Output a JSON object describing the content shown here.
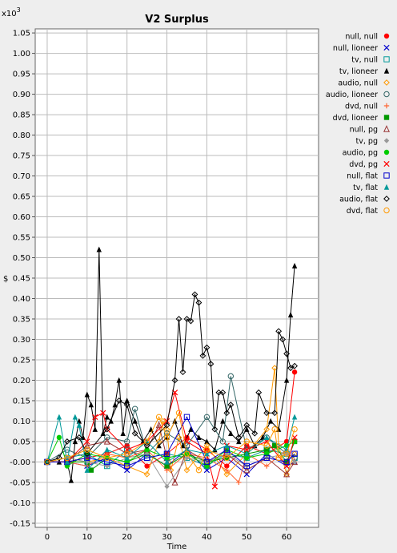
{
  "chart_data": {
    "type": "scatter",
    "title": "V2 Surplus",
    "xlabel": "Time",
    "ylabel": "$",
    "y_multiplier": "x10",
    "y_multiplier_exp": "3",
    "xlim": [
      -3,
      68
    ],
    "ylim": [
      -0.16,
      1.06
    ],
    "grid": true,
    "legend_position": "right",
    "x_ticks": [
      0,
      10,
      20,
      30,
      40,
      50,
      60
    ],
    "x_tick_labels": [
      "0",
      "10",
      "20",
      "30",
      "40",
      "50",
      "60"
    ],
    "y_ticks": [
      -0.15,
      -0.1,
      -0.05,
      0.0,
      0.05,
      0.1,
      0.15,
      0.2,
      0.25,
      0.3,
      0.35,
      0.4,
      0.45,
      0.5,
      0.55,
      0.6,
      0.65,
      0.7,
      0.75,
      0.8,
      0.85,
      0.9,
      0.95,
      1.0,
      1.05
    ],
    "y_tick_labels": [
      "-0.15",
      "-0.10",
      "-0.05",
      "-0.00",
      "0.05",
      "0.10",
      "0.15",
      "0.20",
      "0.25",
      "0.30",
      "0.35",
      "0.40",
      "0.45",
      "0.50",
      "0.55",
      "0.60",
      "0.65",
      "0.70",
      "0.75",
      "0.80",
      "0.85",
      "0.90",
      "0.95",
      "1.00",
      "1.05"
    ],
    "series": [
      {
        "name": "null, null",
        "color": "#ff0000",
        "marker": "circle",
        "x": [
          0,
          5,
          10,
          15,
          20,
          25,
          30,
          35,
          40,
          45,
          50,
          55,
          60,
          62
        ],
        "y": [
          0,
          0,
          0.01,
          0.02,
          0.04,
          -0.01,
          0.02,
          0.06,
          0.03,
          -0.01,
          0.04,
          0.02,
          0.05,
          0.22
        ]
      },
      {
        "name": "null, lioneer",
        "color": "#0000cc",
        "marker": "x",
        "x": [
          0,
          5,
          10,
          15,
          20,
          25,
          30,
          35,
          40,
          45,
          50,
          55,
          60,
          62
        ],
        "y": [
          0,
          0,
          -0.01,
          0.01,
          -0.02,
          0.02,
          -0.01,
          0.03,
          -0.02,
          0.01,
          -0.03,
          0.02,
          -0.01,
          0.0
        ]
      },
      {
        "name": "tv, null",
        "color": "#009999",
        "marker": "square",
        "x": [
          0,
          5,
          10,
          15,
          20,
          25,
          30,
          35,
          40,
          45,
          50,
          55,
          60,
          62
        ],
        "y": [
          0,
          0.01,
          0.02,
          -0.01,
          0.03,
          0.01,
          0.02,
          0.01,
          -0.01,
          0.02,
          0.01,
          0.03,
          0.02,
          0.01
        ]
      },
      {
        "name": "tv, lioneer",
        "color": "#000000",
        "marker": "triangle",
        "x": [
          0,
          3,
          5,
          6,
          7,
          8,
          9,
          10,
          11,
          12,
          13,
          14,
          15,
          16,
          17,
          18,
          19,
          20,
          22,
          24,
          26,
          28,
          30,
          32,
          34,
          36,
          38,
          40,
          42,
          44,
          46,
          48,
          50,
          52,
          54,
          56,
          58,
          60,
          61,
          62
        ],
        "y": [
          0,
          0,
          0,
          -0.045,
          0.05,
          0.1,
          0.06,
          0.165,
          0.14,
          0.08,
          0.52,
          0.07,
          0.11,
          0.1,
          0.14,
          0.2,
          0.07,
          0.15,
          0.1,
          0.05,
          0.08,
          0.04,
          0.06,
          0.1,
          0.04,
          0.08,
          0.06,
          0.05,
          0.03,
          0.1,
          0.07,
          0.05,
          0.08,
          0.04,
          0.06,
          0.1,
          0.08,
          0.2,
          0.36,
          0.48
        ]
      },
      {
        "name": "audio, null",
        "color": "#ff9900",
        "marker": "diamond",
        "x": [
          0,
          5,
          10,
          15,
          20,
          25,
          28,
          29,
          30,
          31,
          33,
          35,
          40,
          45,
          50,
          55,
          57,
          58,
          60,
          62
        ],
        "y": [
          0,
          0,
          0,
          0.01,
          -0.01,
          -0.03,
          0.05,
          0.1,
          0.08,
          -0.02,
          0.06,
          -0.02,
          0.04,
          -0.03,
          0.02,
          0.08,
          0.23,
          0.04,
          -0.03,
          0.02
        ]
      },
      {
        "name": "audio, lioneer",
        "color": "#336666",
        "marker": "circleopen",
        "x": [
          0,
          5,
          10,
          15,
          20,
          22,
          25,
          30,
          35,
          40,
          44,
          46,
          50,
          55,
          60,
          62
        ],
        "y": [
          0,
          0.03,
          0.01,
          0.06,
          0.05,
          0.13,
          0.02,
          0.07,
          0.04,
          0.11,
          0.05,
          0.21,
          0.03,
          0.06,
          0.02,
          0.01
        ]
      },
      {
        "name": "dvd, null",
        "color": "#ff6633",
        "marker": "plus",
        "x": [
          0,
          5,
          10,
          15,
          20,
          25,
          30,
          35,
          40,
          45,
          48,
          50,
          55,
          60,
          62
        ],
        "y": [
          0,
          0,
          -0.01,
          0.02,
          0.01,
          0.03,
          -0.02,
          0.02,
          0.01,
          -0.02,
          -0.05,
          0.02,
          -0.01,
          0.03,
          0.0
        ]
      },
      {
        "name": "dvd, lioneer",
        "color": "#009900",
        "marker": "squarefill",
        "x": [
          0,
          5,
          10,
          11,
          15,
          20,
          25,
          30,
          35,
          40,
          45,
          50,
          55,
          57,
          60,
          62
        ],
        "y": [
          0,
          0,
          0.0,
          -0.02,
          0.01,
          0.0,
          0.02,
          -0.01,
          0.02,
          0.0,
          0.01,
          0.02,
          0.03,
          0.04,
          0.0,
          0.05
        ]
      },
      {
        "name": "null, pg",
        "color": "#993333",
        "marker": "triangleopen",
        "x": [
          0,
          5,
          10,
          15,
          20,
          25,
          28,
          30,
          32,
          35,
          40,
          45,
          50,
          55,
          60,
          62
        ],
        "y": [
          0,
          0,
          0.04,
          0.05,
          0.02,
          0.03,
          0.09,
          0.01,
          -0.05,
          0.03,
          0.0,
          0.02,
          -0.02,
          0.01,
          -0.03,
          0.0
        ]
      },
      {
        "name": "tv, pg",
        "color": "#999999",
        "marker": "diamondfill",
        "x": [
          0,
          5,
          10,
          15,
          20,
          25,
          30,
          35,
          40,
          45,
          50,
          55,
          60,
          62
        ],
        "y": [
          0,
          0.01,
          0.0,
          -0.01,
          0.01,
          0.02,
          -0.06,
          0.01,
          0.0,
          0.02,
          -0.01,
          0.01,
          0.02,
          0.0
        ]
      },
      {
        "name": "audio, pg",
        "color": "#00cc00",
        "marker": "circlefill",
        "x": [
          0,
          3,
          5,
          10,
          15,
          20,
          25,
          30,
          35,
          40,
          45,
          50,
          55,
          60,
          62
        ],
        "y": [
          0,
          0.06,
          -0.01,
          0.02,
          0.01,
          0.0,
          0.03,
          0.01,
          0.02,
          -0.01,
          0.03,
          0.01,
          0.02,
          0.04,
          0.05
        ]
      },
      {
        "name": "dvd, pg",
        "color": "#ff0000",
        "marker": "x",
        "x": [
          0,
          5,
          10,
          12,
          14,
          15,
          20,
          25,
          30,
          32,
          35,
          40,
          42,
          45,
          50,
          55,
          60,
          62
        ],
        "y": [
          0,
          0,
          0.05,
          0.11,
          0.12,
          0.08,
          0.03,
          0.05,
          0.1,
          0.17,
          0.05,
          0.02,
          -0.06,
          0.04,
          0.03,
          0.05,
          -0.01,
          0.06
        ]
      },
      {
        "name": "null, flat",
        "color": "#0000cc",
        "marker": "square",
        "x": [
          0,
          5,
          10,
          15,
          20,
          25,
          30,
          35,
          40,
          45,
          50,
          55,
          60,
          62
        ],
        "y": [
          0,
          0,
          0.01,
          0.0,
          -0.01,
          0.01,
          0.02,
          0.11,
          0.0,
          0.03,
          -0.01,
          0.01,
          0.0,
          0.02
        ]
      },
      {
        "name": "tv, flat",
        "color": "#009999",
        "marker": "trianglefill",
        "x": [
          0,
          3,
          5,
          7,
          8,
          10,
          15,
          20,
          25,
          30,
          35,
          40,
          45,
          50,
          55,
          60,
          62
        ],
        "y": [
          0,
          0.11,
          0.0,
          0.11,
          0.09,
          -0.02,
          0.03,
          0.01,
          0.05,
          0.0,
          0.03,
          0.02,
          0.04,
          0.02,
          0.06,
          0.03,
          0.11
        ]
      },
      {
        "name": "audio, flat",
        "color": "#000000",
        "marker": "diamond",
        "x": [
          0,
          3,
          5,
          8,
          10,
          15,
          18,
          20,
          22,
          25,
          30,
          32,
          33,
          34,
          35,
          36,
          37,
          38,
          39,
          40,
          41,
          42,
          43,
          44,
          45,
          46,
          48,
          50,
          52,
          53,
          55,
          57,
          58,
          59,
          60,
          61,
          62
        ],
        "y": [
          0,
          0.01,
          0.05,
          0.06,
          0.02,
          0.08,
          0.15,
          0.14,
          0.07,
          0.04,
          0.09,
          0.2,
          0.35,
          0.22,
          0.35,
          0.345,
          0.41,
          0.39,
          0.26,
          0.28,
          0.24,
          0.08,
          0.17,
          0.17,
          0.12,
          0.14,
          0.06,
          0.09,
          0.07,
          0.17,
          0.12,
          0.12,
          0.32,
          0.3,
          0.265,
          0.23,
          0.235
        ]
      },
      {
        "name": "dvd, flat",
        "color": "#ff9900",
        "marker": "circleopen",
        "x": [
          0,
          5,
          10,
          15,
          20,
          25,
          28,
          30,
          33,
          35,
          38,
          40,
          45,
          50,
          55,
          57,
          58,
          60,
          62
        ],
        "y": [
          0,
          0.01,
          0.03,
          0.01,
          0.02,
          0.05,
          0.11,
          0.06,
          0.12,
          0.02,
          -0.02,
          0.03,
          0.01,
          0.05,
          0.04,
          0.08,
          0.01,
          0.02,
          0.08
        ]
      }
    ]
  }
}
